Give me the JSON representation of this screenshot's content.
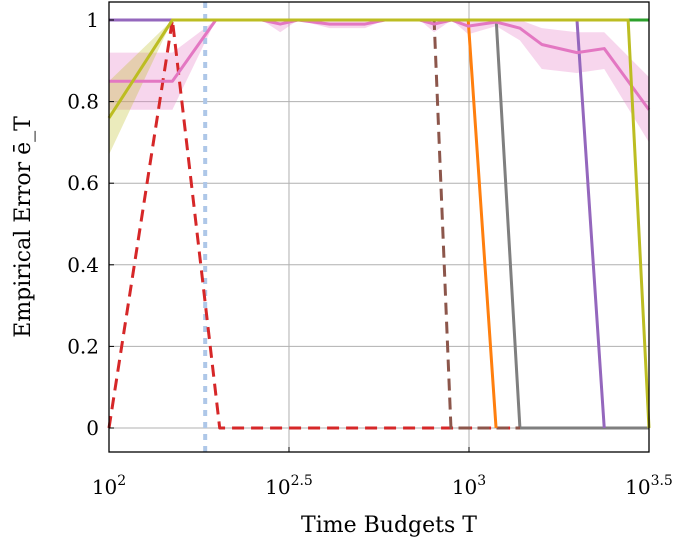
{
  "chart_data": {
    "type": "line",
    "xlabel": "Time Budgets T",
    "ylabel": "Empirical Error ē_T",
    "x_scale": "log10",
    "xlim": [
      100,
      3162
    ],
    "ylim": [
      -0.06,
      1.045
    ],
    "grid": true,
    "x_ticks": [
      {
        "value": 100,
        "base": "10",
        "exp": "2"
      },
      {
        "value": 316.2,
        "base": "10",
        "exp": "2.5"
      },
      {
        "value": 1000,
        "base": "10",
        "exp": "3"
      },
      {
        "value": 3162,
        "base": "10",
        "exp": "3.5"
      }
    ],
    "y_ticks": [
      "0",
      "0.2",
      "0.4",
      "0.6",
      "0.8",
      "1"
    ],
    "y_tick_values": [
      0,
      0.2,
      0.4,
      0.6,
      0.8,
      1
    ],
    "vertical_marker": {
      "x": 185,
      "color": "#aec7e8",
      "style": "dotted"
    },
    "series": [
      {
        "color": "#2ca02c",
        "style": "solid",
        "x": [
          100,
          3162
        ],
        "y": [
          1,
          1
        ]
      },
      {
        "color": "#7f7f7f",
        "style": "solid",
        "x": [
          100,
          1190,
          1385,
          3162
        ],
        "y": [
          1,
          1,
          0,
          0
        ]
      },
      {
        "color": "#d62728",
        "style": "dashed",
        "x": [
          100,
          150,
          203,
          1385
        ],
        "y": [
          0,
          1,
          0,
          0
        ]
      },
      {
        "color": "#8c564b",
        "style": "dashed",
        "x": [
          100,
          800,
          891,
          1385
        ],
        "y": [
          1,
          1,
          0,
          0
        ]
      },
      {
        "color": "#ff7f0e",
        "style": "solid",
        "x": [
          100,
          995,
          1189
        ],
        "y": [
          1,
          1,
          0
        ]
      },
      {
        "color": "#9467bd",
        "style": "solid",
        "x": [
          100,
          1995,
          2375
        ],
        "y": [
          1,
          1,
          0
        ]
      },
      {
        "color": "#e377c2",
        "style": "solid",
        "x": [
          100,
          150,
          198,
          266,
          299,
          335,
          410,
          514,
          584,
          730,
          800,
          895,
          995,
          1190,
          1385,
          1593,
          1995,
          2375,
          3162
        ],
        "y": [
          0.85,
          0.85,
          1,
          1,
          0.99,
          1,
          0.99,
          0.99,
          1,
          1,
          0.99,
          1,
          0.985,
          0.995,
          0.98,
          0.94,
          0.92,
          0.93,
          0.78
        ],
        "band_low": [
          0.78,
          0.78,
          1,
          1,
          0.97,
          1,
          0.98,
          0.98,
          1,
          1,
          0.97,
          1,
          0.965,
          0.985,
          0.95,
          0.88,
          0.87,
          0.88,
          0.7
        ],
        "band_high": [
          0.92,
          0.92,
          1,
          1,
          1,
          1,
          1,
          1,
          1,
          1,
          1,
          1,
          1,
          1,
          1,
          0.98,
          0.97,
          0.97,
          0.86
        ]
      },
      {
        "color": "#bcbd22",
        "style": "solid",
        "x": [
          100,
          150,
          2767,
          3162
        ],
        "y": [
          0.76,
          1,
          1,
          0
        ],
        "band_low": [
          0.67,
          1,
          1,
          0
        ],
        "band_high": [
          0.85,
          1,
          1,
          0
        ]
      }
    ]
  }
}
